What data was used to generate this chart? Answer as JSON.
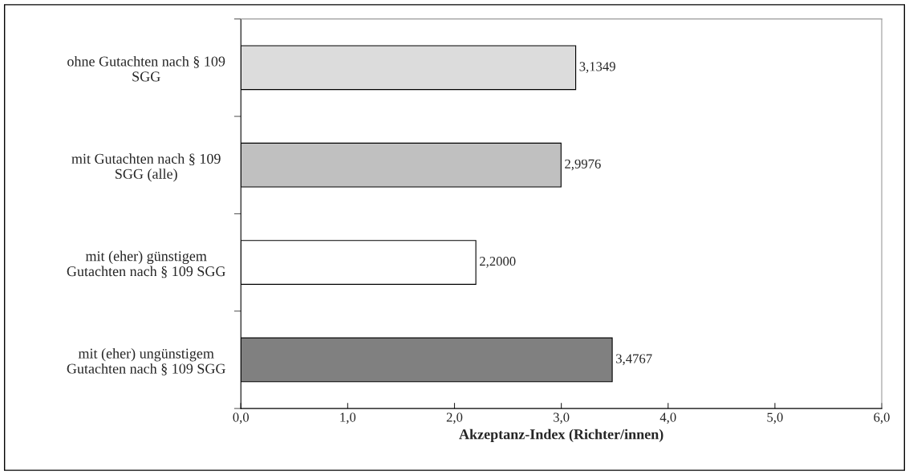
{
  "chart_data": {
    "type": "bar",
    "orientation": "horizontal",
    "xlabel": "Akzeptanz-Index (Richter/innen)",
    "categories": [
      "ohne Gutachten nach § 109 SGG",
      "mit Gutachten nach § 109 SGG (alle)",
      "mit (eher) günstigem Gutachten nach § 109 SGG",
      "mit (eher) ungünstigem Gutachten nach § 109 SGG"
    ],
    "values": [
      3.1349,
      2.9976,
      2.2,
      3.4767
    ],
    "value_labels": [
      "3,1349",
      "2,9976",
      "2,2000",
      "3,4767"
    ],
    "colors": [
      "#dcdcdc",
      "#c0c0c0",
      "#ffffff",
      "#808080"
    ],
    "xlim": [
      0,
      6
    ],
    "xticks": [
      {
        "value": 0,
        "label": "0,0"
      },
      {
        "value": 1,
        "label": "1,0"
      },
      {
        "value": 2,
        "label": "2,0"
      },
      {
        "value": 3,
        "label": "3,0"
      },
      {
        "value": 4,
        "label": "4,0"
      },
      {
        "value": 5,
        "label": "5,0"
      },
      {
        "value": 6,
        "label": "6,0"
      }
    ],
    "grid": false
  }
}
